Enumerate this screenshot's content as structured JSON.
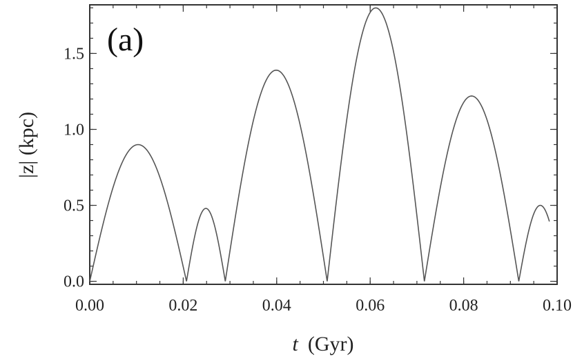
{
  "chart_data": {
    "type": "line",
    "panel_label": "(a)",
    "xlabel_var": "t",
    "xlabel_unit": "(Gyr)",
    "ylabel": "|z| (kpc)",
    "xlim": [
      0,
      0.1
    ],
    "ylim": [
      -0.02,
      1.82
    ],
    "xticks": [
      0.0,
      0.02,
      0.04,
      0.06,
      0.08,
      0.1
    ],
    "xtick_labels": [
      "0.00",
      "0.02",
      "0.04",
      "0.06",
      "0.08",
      "0.10"
    ],
    "yticks": [
      0.0,
      0.5,
      1.0,
      1.5
    ],
    "ytick_labels": [
      "0.0",
      "0.5",
      "1.0",
      "1.5"
    ],
    "grid": false,
    "series": [
      {
        "color": "#555555",
        "arches": [
          {
            "t0": 0.0,
            "t1": 0.0207,
            "peak": 0.9
          },
          {
            "t0": 0.0207,
            "t1": 0.029,
            "peak": 0.48
          },
          {
            "t0": 0.029,
            "t1": 0.0508,
            "peak": 1.39
          },
          {
            "t0": 0.0508,
            "t1": 0.0716,
            "peak": 1.8
          },
          {
            "t0": 0.0716,
            "t1": 0.0918,
            "peak": 1.22
          },
          {
            "t0": 0.0918,
            "t1": 0.101,
            "peak": 0.5
          }
        ],
        "t_end": 0.0984
      }
    ]
  }
}
